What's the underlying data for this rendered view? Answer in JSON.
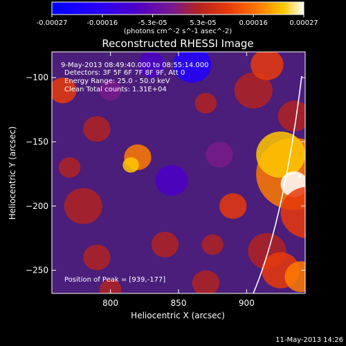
{
  "colorbar": {
    "ticks": [
      "-0.00027",
      "-0.00016",
      "-5.3e-05",
      "5.3e-05",
      "0.00016",
      "0.00027"
    ],
    "unit_label": "(photons cm^-2 s^-1 asec^-2)",
    "colors": [
      "#0000ff",
      "#4b00c8",
      "#7a1a8c",
      "#b22222",
      "#e83a0a",
      "#ff7a00",
      "#ffc800",
      "#ffffff"
    ]
  },
  "chart_data": {
    "type": "heatmap",
    "title": "Reconstructed RHESSI Image",
    "xlabel": "Heliocentric X (arcsec)",
    "ylabel": "Heliocentric Y (arcsec)",
    "xlim": [
      757,
      943
    ],
    "ylim": [
      -268,
      -80
    ],
    "xticks": [
      800,
      850,
      900
    ],
    "yticks": [
      -100,
      -150,
      -200,
      -250
    ],
    "colorbar_range": [
      -0.00027,
      0.00027
    ],
    "peak": {
      "x": 939,
      "y": -177
    },
    "limb_visible": true
  },
  "annotations": {
    "time_range": "9-May-2013 08:49:40.000 to 08:55:14.000",
    "detectors": "Detectors: 3F 5F 6F 7F 8F 9F, Att 0",
    "energy": "Energy Range: 25.0 - 50.0 keV",
    "clean": "Clean     Total counts: 1.31E+04",
    "peak_text": "Position of Peak = [939,-177]"
  },
  "footer": {
    "date": "11-May-2013 14:26"
  }
}
